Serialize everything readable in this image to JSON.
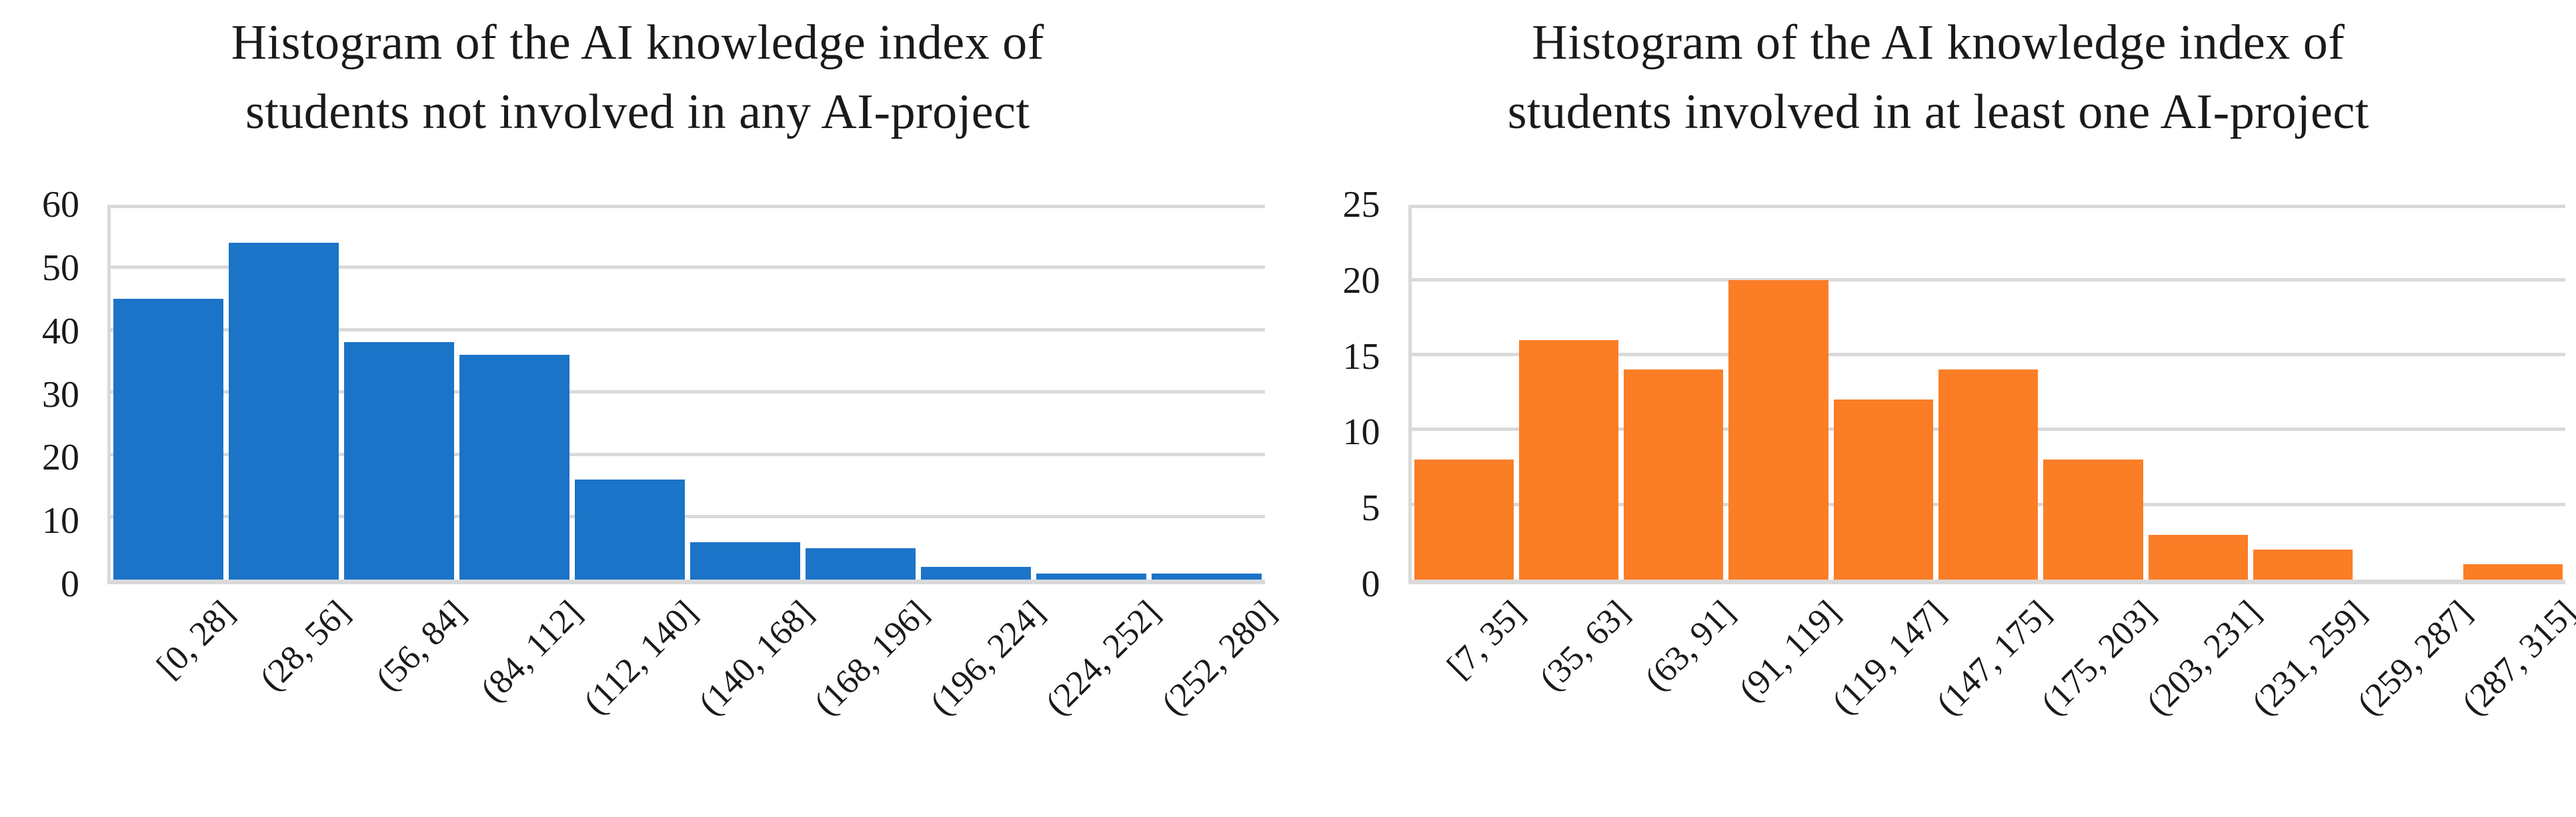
{
  "figure": {
    "background": "#FFFFFF",
    "gridline_color": "#D9D9D9",
    "text_color": "#1A1A1A"
  },
  "chart_data": [
    {
      "type": "bar",
      "subtype": "histogram",
      "title": "Histogram of the AI knowledge index of students not involved in any AI-project",
      "title_lines": [
        "Histogram of the AI knowledge index of",
        "students not involved in any AI-project"
      ],
      "categories": [
        "[0, 28]",
        "(28, 56]",
        "(56, 84]",
        "(84, 112]",
        "(112, 140]",
        "(140, 168]",
        "(168, 196]",
        "(196, 224]",
        "(224, 252]",
        "(252, 280]"
      ],
      "values": [
        45,
        54,
        38,
        36,
        16,
        6,
        5,
        2,
        1,
        1
      ],
      "xlabel": "",
      "ylabel": "",
      "ylim": [
        0,
        60
      ],
      "ytick_step": 10,
      "yticks": [
        0,
        10,
        20,
        30,
        40,
        50,
        60
      ],
      "bar_color": "#1B74C8",
      "gridline_color": "#D9D9D9",
      "grid": true,
      "legend": "none"
    },
    {
      "type": "bar",
      "subtype": "histogram",
      "title": "Histogram of the AI knowledge index of students involved in at least one AI-project",
      "title_lines": [
        "Histogram of the AI knowledge index of",
        "students involved in at least one AI-project"
      ],
      "categories": [
        "[7, 35]",
        "(35, 63]",
        "(63, 91]",
        "(91, 119]",
        "(119, 147]",
        "(147, 175]",
        "(175, 203]",
        "(203, 231]",
        "(231, 259]",
        "(259, 287]",
        "(287, 315]"
      ],
      "values": [
        8,
        16,
        14,
        20,
        12,
        14,
        8,
        3,
        2,
        0,
        1
      ],
      "xlabel": "",
      "ylabel": "",
      "ylim": [
        0,
        25
      ],
      "ytick_step": 5,
      "yticks": [
        0,
        5,
        10,
        15,
        20,
        25
      ],
      "bar_color": "#FB7D26",
      "gridline_color": "#D9D9D9",
      "grid": true,
      "legend": "none"
    }
  ]
}
